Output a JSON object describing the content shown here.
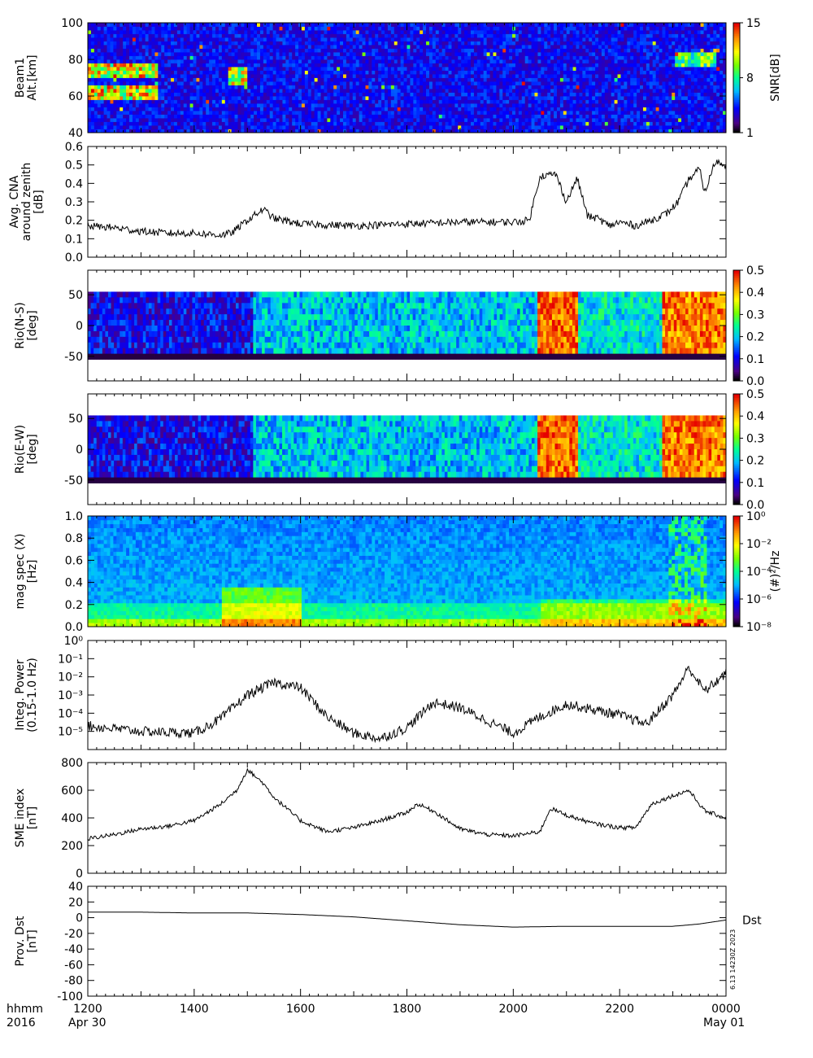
{
  "footer": {
    "left_line1": "hhmm",
    "left_line2": "2016",
    "date_start": "Apr 30",
    "date_end": "May 01",
    "x_ticks": [
      "1200",
      "1400",
      "1600",
      "1800",
      "2000",
      "2200",
      "0000"
    ]
  },
  "chart_data": [
    {
      "type": "heatmap",
      "ylabel": "Beam1\nAlt.[km]",
      "ylim": [
        40,
        100
      ],
      "yticks": [
        "40",
        "60",
        "80",
        "100"
      ],
      "colorbar": {
        "label": "SNR[dB]",
        "ticks": [
          "1",
          "8",
          "15"
        ],
        "range": [
          1,
          15
        ],
        "colormap": "rainbow"
      },
      "note": "Mostly noise at 1-3 dB; strong echoes 58-78 km from 1200-1300; patches at 67-75 km near 1500-1600; scattered echoes 75-85 km near 2300"
    },
    {
      "type": "line",
      "ylabel": "Avg. CNA\naround zenith\n[dB]",
      "ylim": [
        0,
        0.6
      ],
      "yticks": [
        "0.0",
        "0.1",
        "0.2",
        "0.3",
        "0.4",
        "0.5",
        "0.6"
      ],
      "x_hours": [
        0,
        0.5,
        1,
        1.5,
        2,
        2.5,
        2.7,
        3,
        3.3,
        3.5,
        4,
        5,
        6,
        7,
        8,
        8.3,
        8.5,
        8.8,
        9,
        9.2,
        9.4,
        9.6,
        9.8,
        10,
        10.3,
        10.6,
        10.9,
        11.1,
        11.3,
        11.5,
        11.6,
        11.8,
        12
      ],
      "values": [
        0.17,
        0.16,
        0.14,
        0.13,
        0.13,
        0.12,
        0.13,
        0.2,
        0.26,
        0.21,
        0.18,
        0.17,
        0.18,
        0.19,
        0.19,
        0.2,
        0.44,
        0.45,
        0.3,
        0.43,
        0.22,
        0.21,
        0.17,
        0.19,
        0.17,
        0.2,
        0.24,
        0.3,
        0.42,
        0.48,
        0.35,
        0.52,
        0.5
      ]
    },
    {
      "type": "heatmap",
      "ylabel": "Rio(N-S)\n[deg]",
      "ylim": [
        -90,
        90
      ],
      "yticks": [
        "-50",
        "0",
        "50"
      ],
      "colorbar": {
        "ticks": [
          "0.0",
          "0.1",
          "0.2",
          "0.3",
          "0.4",
          "0.5"
        ],
        "range": [
          0,
          0.5
        ],
        "colormap": "rainbow"
      },
      "note": "Rows between -55 and 55 deg; low (0.05-0.15) until 1500, 0.15-0.25 afterwards, 0.4-0.5 during 2040-2120 and after 2300"
    },
    {
      "type": "heatmap",
      "ylabel": "Rio(E-W)\n[deg]",
      "ylim": [
        -90,
        90
      ],
      "yticks": [
        "-50",
        "0",
        "50"
      ],
      "colorbar": {
        "ticks": [
          "0.0",
          "0.1",
          "0.2",
          "0.3",
          "0.4",
          "0.5"
        ],
        "range": [
          0,
          0.5
        ],
        "colormap": "rainbow"
      },
      "note": "Similar to N-S: low before 1500, moderate mid-interval, high (0.4-0.5) during 2040-2120 and after 2300"
    },
    {
      "type": "heatmap",
      "ylabel": "mag spec (X)\n[Hz]",
      "ylim": [
        0,
        1.0
      ],
      "yticks": [
        "0.0",
        "0.2",
        "0.4",
        "0.6",
        "0.8",
        "1.0"
      ],
      "colorbar": {
        "label": "(#)²/Hz",
        "ticks": [
          "10⁻⁸",
          "10⁻⁶",
          "10⁻⁴",
          "10⁻²",
          "10⁰"
        ],
        "range_log10": [
          -9,
          1
        ],
        "colormap": "rainbow"
      },
      "note": "Background ~1e-6; enhanced low-frequency power near 1500-1600 (0.1-0.35 Hz) and after 2040; vertical bursts near 2300"
    },
    {
      "type": "line",
      "ylabel": "Integ. Power\n(0.15-1.0 Hz)",
      "yscale": "log",
      "ylim_log10": [
        -6,
        0
      ],
      "yticks": [
        "10⁻⁵",
        "10⁻⁴",
        "10⁻³",
        "10⁻²",
        "10⁻¹",
        "10⁰"
      ],
      "x_hours": [
        0,
        1,
        2,
        2.5,
        3,
        3.5,
        4,
        4.5,
        5,
        5.5,
        6,
        6.5,
        7,
        7.5,
        8,
        8.5,
        9,
        9.5,
        10,
        10.5,
        11,
        11.3,
        11.6,
        12
      ],
      "values_log10": [
        -4.7,
        -5.0,
        -5.1,
        -4.3,
        -3.0,
        -2.3,
        -2.6,
        -4.2,
        -5.1,
        -5.4,
        -4.8,
        -3.4,
        -3.7,
        -4.4,
        -5.1,
        -4.2,
        -3.5,
        -3.8,
        -4.1,
        -4.6,
        -3.0,
        -1.5,
        -2.8,
        -1.8
      ]
    },
    {
      "type": "line",
      "ylabel": "SME index\n[nT]",
      "ylim": [
        0,
        800
      ],
      "yticks": [
        "0",
        "200",
        "400",
        "600",
        "800"
      ],
      "x_hours": [
        0,
        0.5,
        1,
        1.5,
        2,
        2.5,
        2.8,
        3,
        3.3,
        3.5,
        4,
        4.5,
        5,
        5.5,
        6,
        6.2,
        6.5,
        7,
        7.5,
        8,
        8.5,
        8.7,
        9,
        9.5,
        10,
        10.3,
        10.6,
        11,
        11.3,
        11.6,
        12
      ],
      "values": [
        250,
        280,
        320,
        340,
        380,
        500,
        600,
        750,
        650,
        550,
        380,
        300,
        330,
        380,
        440,
        500,
        450,
        320,
        280,
        270,
        300,
        470,
        420,
        360,
        330,
        330,
        500,
        560,
        600,
        450,
        400
      ]
    },
    {
      "type": "line",
      "ylabel": "Prov. Dst\n[nT]",
      "ylim": [
        -100,
        40
      ],
      "yticks": [
        "-100",
        "-80",
        "-60",
        "-40",
        "-20",
        "0",
        "20",
        "40"
      ],
      "x_hours": [
        0,
        1,
        2,
        3,
        4,
        5,
        6,
        7,
        8,
        9,
        10,
        11,
        11.5,
        12
      ],
      "values": [
        7,
        7,
        6,
        6,
        4,
        1,
        -4,
        -9,
        -12,
        -11,
        -11,
        -11,
        -8,
        -3
      ],
      "end_label": "Dst",
      "side_note": "6.13 14230Z 2023"
    }
  ]
}
